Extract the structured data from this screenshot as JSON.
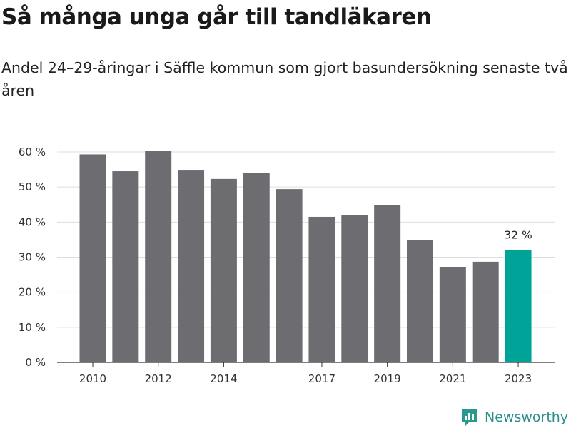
{
  "header": {
    "title": "Så många unga går till tandläkaren",
    "subtitle": "Andel 24–29-åringar i Säffle kommun som gjort basundersökning senaste två åren"
  },
  "brand": {
    "name": "Newsworthy",
    "logo_icon": "bar-chart-bubble-icon",
    "color": "#2a9a8f"
  },
  "colors": {
    "bar": "#6d6c71",
    "highlight": "#00a397",
    "grid": "#dddddd"
  },
  "chart_data": {
    "type": "bar",
    "title": "Så många unga går till tandläkaren",
    "subtitle": "Andel 24–29-åringar i Säffle kommun som gjort basundersökning senaste två åren",
    "categories": [
      "2010",
      "2011",
      "2012",
      "2013",
      "2014",
      "2015",
      "2016",
      "2017",
      "2018",
      "2019",
      "2020",
      "2021",
      "2022",
      "2023"
    ],
    "values": [
      59.3,
      54.5,
      60.3,
      54.7,
      52.3,
      53.9,
      49.4,
      41.5,
      42.1,
      44.8,
      34.8,
      27.1,
      28.7,
      32
    ],
    "highlight_index": 13,
    "value_labels": [
      {
        "index": 13,
        "text": "32 %"
      }
    ],
    "x_tick_labels": [
      "2010",
      "2012",
      "2014",
      "2017",
      "2019",
      "2021",
      "2023"
    ],
    "y_ticks": [
      0,
      10,
      20,
      30,
      40,
      50,
      60
    ],
    "y_tick_suffix": " %",
    "ylim": [
      0,
      60
    ],
    "grid": true,
    "legend": "none"
  }
}
